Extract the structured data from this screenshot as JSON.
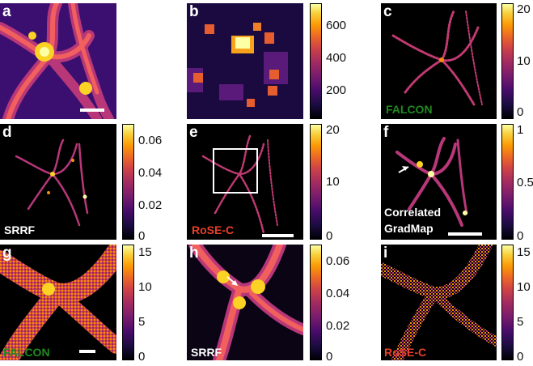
{
  "panels": {
    "a": {
      "label": "a"
    },
    "b": {
      "label": "b"
    },
    "c": {
      "label": "c",
      "method": "FALCON"
    },
    "d": {
      "label": "d",
      "method": "SRRF"
    },
    "e": {
      "label": "e",
      "method": "RoSE-C"
    },
    "f": {
      "label": "f",
      "method_line1": "Correlated",
      "method_line2": "GradMap"
    },
    "g": {
      "label": "g",
      "method": "FALCON"
    },
    "h": {
      "label": "h",
      "method": "SRRF"
    },
    "i": {
      "label": "i",
      "method": "RoSE-C"
    }
  },
  "colorbars": {
    "b": [
      "600",
      "400",
      "200"
    ],
    "c": [
      "20",
      "10",
      "0"
    ],
    "d": [
      "0.06",
      "0.04",
      "0.02",
      "0"
    ],
    "e": [
      "20",
      "10",
      "0"
    ],
    "f": [
      "1",
      "0.5",
      "0"
    ],
    "g": [
      "15",
      "10",
      "5",
      "0"
    ],
    "h": [
      "0.06",
      "0.04",
      "0.02",
      "0"
    ],
    "i": [
      "15",
      "10",
      "5",
      "0"
    ]
  },
  "colors": {
    "falcon_label": "#1f8a1f",
    "rose_label": "#e8402a",
    "white_label": "#ffffff",
    "colormap": "inferno"
  }
}
